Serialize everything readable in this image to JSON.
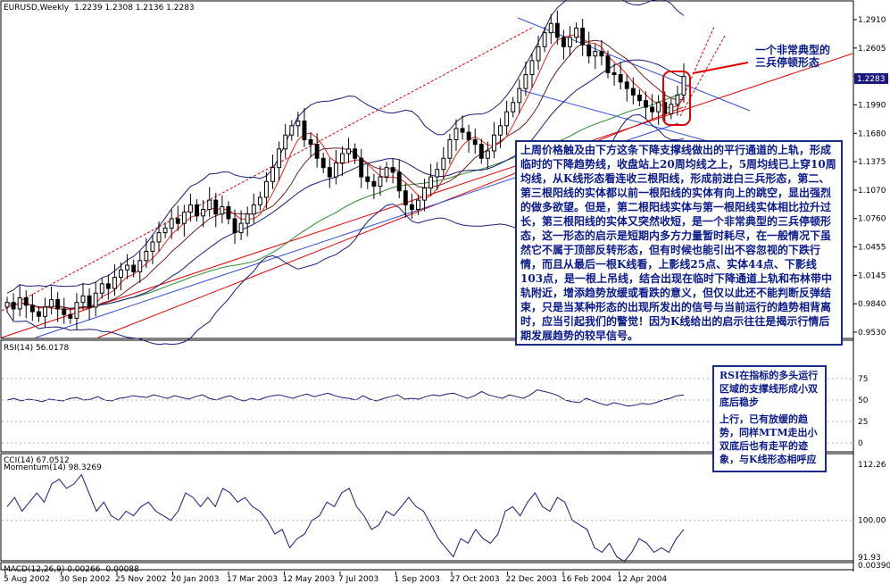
{
  "header": {
    "symbol": "EURUSD,Weekly",
    "ohlc": "1.2239 1.2308 1.2136 1.2283"
  },
  "price_axis": {
    "labels": [
      "1.2910",
      "1.2605",
      "1.2283",
      "1.1990",
      "1.1680",
      "1.1375",
      "1.1070",
      "1.0760",
      "1.0455",
      "1.0145",
      "0.9840",
      "0.9530"
    ],
    "current": "1.2283"
  },
  "rsi": {
    "label": "RSI(14) 56.0178",
    "levels": [
      "75",
      "50",
      "25",
      "0"
    ]
  },
  "momentum": {
    "cci_label": "CCI(14) 67.0512",
    "label": "Momentum(14) 98.3269",
    "levels": [
      "112.26",
      "100.00",
      "91.93"
    ]
  },
  "macd": {
    "label": "MACD(12,26,9) 0.00266 -0.00088",
    "level": "0.00390"
  },
  "time_axis": [
    "5 Aug 2002",
    "30 Sep 2002",
    "25 Nov 2002",
    "20 Jan 2003",
    "17 Mar 2003",
    "12 May 2003",
    "7 Jul 2003",
    "1 Sep 2003",
    "27 Oct 2003",
    "22 Dec 2003",
    "16 Feb 2004",
    "12 Apr 2004"
  ],
  "annotations": {
    "pattern_callout": [
      "一个非常典型的",
      "三兵停顿形态"
    ],
    "main_text": "上周价格触及由下方这条下降支撑线做出的平行通道的上轨，形成临时的下降趋势线，收盘站上20周均线之上，5周均线已上穿10周均线，从K线形态看连收三根阳线，形成前进白三兵形态，第二、第三根阳线的实体都以前一根阳线的实体有向上的跳空，显出强烈的做多欲望。但是，第二根阳线实体与第一根阳线实体相比拉升过长，第三根阳线的实体又突然收短，是一个非常典型的三兵停顿形态，这一形态的启示是短期内多方力量暂时耗尽，在一般情况下虽然它不属于顶部反转形态，但有时候也能引出不容忽视的下跌行情，而且从最后一根K线看，上影线25点、实体44点、下影线103点，是一根上吊线，结合出现在临时下降通道上轨和布林带中轨附近，增添趋势放缓或看跌的意义，但仅以此还不能判断反弹结束，只是当某种形态的出现所发出的信号与当前运行的趋势相背离时，应当引起我们的警觉！因为K线给出的启示往往是揭示行情后期发展趋势的较早信号。",
    "rsi_text": [
      "RSI在指标的多头运行区域的支撑线形成小双底后稳步",
      "上行，已有放缓的趋势，同样MTM走出小双底后也有走平的迹象，与K线形态相呼应"
    ]
  },
  "colors": {
    "bull": "#ffffff",
    "bear": "#000000",
    "ma5": "#e8231a",
    "ma10": "#6e1d1d",
    "ma20": "#2e8b2e",
    "bollinger": "#1a1a7a",
    "channel": "#3050d8",
    "trend": "#e00000"
  },
  "chart_data": {
    "type": "candlestick",
    "title": "EURUSD,Weekly",
    "x": [
      "5 Aug 2002",
      "30 Sep 2002",
      "25 Nov 2002",
      "20 Jan 2003",
      "17 Mar 2003",
      "12 May 2003",
      "7 Jul 2003",
      "1 Sep 2003",
      "27 Oct 2003",
      "22 Dec 2003",
      "16 Feb 2004",
      "12 Apr 2004"
    ],
    "ylim": [
      0.953,
      1.291
    ],
    "closes": [
      0.985,
      0.978,
      0.99,
      0.982,
      0.975,
      0.97,
      0.98,
      0.988,
      0.978,
      0.972,
      0.968,
      0.985,
      0.992,
      0.98,
      0.995,
      1.005,
      1.0,
      1.012,
      1.02,
      1.025,
      1.018,
      1.03,
      1.04,
      1.05,
      1.06,
      1.065,
      1.075,
      1.07,
      1.082,
      1.09,
      1.078,
      1.085,
      1.095,
      1.08,
      1.088,
      1.075,
      1.06,
      1.07,
      1.08,
      1.09,
      1.098,
      1.115,
      1.13,
      1.15,
      1.165,
      1.175,
      1.18,
      1.16,
      1.155,
      1.14,
      1.13,
      1.12,
      1.135,
      1.145,
      1.15,
      1.14,
      1.12,
      1.115,
      1.11,
      1.12,
      1.13,
      1.125,
      1.105,
      1.09,
      1.085,
      1.095,
      1.108,
      1.12,
      1.128,
      1.14,
      1.16,
      1.172,
      1.168,
      1.16,
      1.155,
      1.14,
      1.148,
      1.165,
      1.175,
      1.19,
      1.2,
      1.215,
      1.23,
      1.245,
      1.26,
      1.275,
      1.285,
      1.27,
      1.26,
      1.27,
      1.28,
      1.262,
      1.25,
      1.255,
      1.25,
      1.232,
      1.23,
      1.222,
      1.215,
      1.208,
      1.202,
      1.195,
      1.19,
      1.2,
      1.188,
      1.198,
      1.208,
      1.228
    ],
    "rsi": [
      50,
      52,
      49,
      51,
      50,
      48,
      51,
      50,
      49,
      52,
      53,
      50,
      51,
      54,
      50,
      49,
      52,
      53,
      55,
      54,
      53,
      56,
      54,
      52,
      55,
      53,
      51,
      54,
      56,
      52,
      50,
      53,
      55,
      51,
      49,
      52,
      50,
      53,
      55,
      56,
      54,
      52,
      55,
      57,
      54,
      56,
      58,
      55,
      53,
      52,
      50,
      55,
      51,
      49,
      52,
      54,
      56,
      51,
      52,
      51,
      54,
      56,
      55,
      57,
      58,
      55,
      52,
      55,
      60,
      56,
      54,
      52,
      56,
      54,
      52,
      56,
      62,
      60,
      58,
      55,
      50,
      48,
      47,
      52,
      49,
      46,
      44,
      47,
      45,
      43,
      44,
      46,
      45,
      47,
      50,
      52,
      55,
      56
    ],
    "momentum": [
      103,
      105,
      102,
      104,
      106,
      104,
      108,
      109,
      107,
      108,
      110,
      106,
      102,
      104,
      101,
      100,
      102,
      101,
      103,
      104,
      102,
      101,
      100,
      102,
      106,
      105,
      103,
      105,
      103,
      107,
      106,
      104,
      105,
      103,
      102,
      100,
      97,
      98,
      94,
      96,
      97,
      100,
      101,
      104,
      103,
      106,
      107,
      103,
      101,
      98,
      99,
      102,
      101,
      103,
      105,
      103,
      102,
      99,
      96,
      94,
      92,
      96,
      95,
      98,
      96,
      95,
      97,
      102,
      103,
      101,
      104,
      106,
      103,
      102,
      105,
      104,
      100,
      99,
      98,
      94,
      93,
      95,
      92,
      91,
      93,
      96,
      95,
      93,
      94,
      93,
      96,
      98
    ]
  }
}
